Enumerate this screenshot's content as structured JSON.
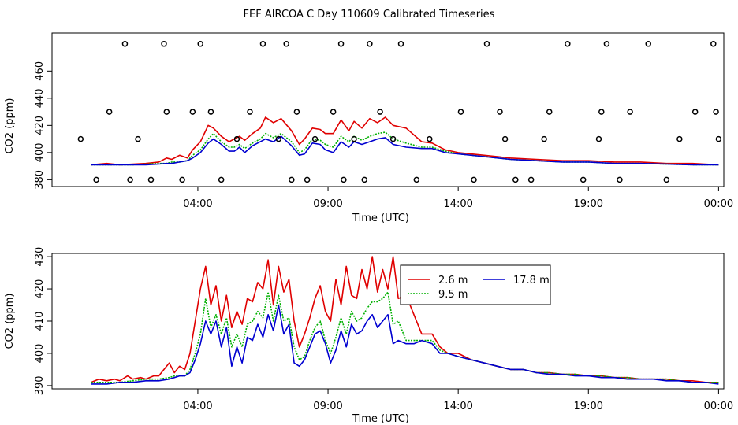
{
  "title": "FEF AIRCOA C  Day 110609  Calibrated Timeseries",
  "chart_data": [
    {
      "type": "scatter+line",
      "xlabel": "Time (UTC)",
      "ylabel": "CO2 (ppm)",
      "x_unit": "hours since 00:00 UTC",
      "xlim": [
        -1.6,
        24.2
      ],
      "ylim": [
        375,
        488
      ],
      "x_ticks": [
        {
          "x": 4,
          "label": "04:00"
        },
        {
          "x": 9,
          "label": "09:00"
        },
        {
          "x": 14,
          "label": "14:00"
        },
        {
          "x": 19,
          "label": "19:00"
        },
        {
          "x": 24,
          "label": "00:00"
        }
      ],
      "y_ticks": [
        380,
        400,
        420,
        440,
        460
      ],
      "grid": false,
      "legend": null,
      "series": [
        {
          "key": "s26",
          "color": "#e00000",
          "style": "solid",
          "x": [
            -0.1,
            0.5,
            1,
            1.5,
            2,
            2.5,
            2.8,
            3,
            3.3,
            3.6,
            3.8,
            4.1,
            4.4,
            4.6,
            4.9,
            5.2,
            5.4,
            5.6,
            5.8,
            6.1,
            6.4,
            6.6,
            6.9,
            7.2,
            7.6,
            7.9,
            8.1,
            8.4,
            8.7,
            8.9,
            9.2,
            9.5,
            9.8,
            10,
            10.3,
            10.6,
            10.9,
            11.2,
            11.5,
            12,
            12.6,
            13,
            13.5,
            14,
            15,
            16,
            17,
            18,
            19,
            20,
            21,
            22,
            23,
            24
          ],
          "y": [
            391,
            392,
            391,
            391.5,
            392,
            393,
            396,
            395,
            398,
            396,
            402,
            408,
            420,
            418,
            412,
            408,
            410,
            412,
            409,
            414,
            418,
            426,
            422,
            425,
            416,
            406,
            410,
            418,
            417,
            414,
            414,
            424,
            416,
            423,
            418,
            425,
            422,
            426,
            420,
            418,
            408,
            407,
            402,
            400,
            398,
            396,
            395,
            394,
            394,
            393,
            393,
            392,
            392,
            391
          ]
        },
        {
          "key": "s95",
          "color": "#00b000",
          "style": "dotted",
          "x": [
            -0.1,
            0.5,
            1,
            1.5,
            2,
            2.5,
            2.8,
            3,
            3.3,
            3.6,
            3.8,
            4.1,
            4.4,
            4.6,
            4.9,
            5.2,
            5.4,
            5.6,
            5.8,
            6.1,
            6.4,
            6.6,
            6.9,
            7.2,
            7.6,
            7.9,
            8.1,
            8.4,
            8.7,
            8.9,
            9.2,
            9.5,
            9.8,
            10,
            10.3,
            10.6,
            10.9,
            11.2,
            11.5,
            12,
            12.6,
            13,
            13.5,
            14,
            15,
            16,
            17,
            18,
            19,
            20,
            21,
            22,
            23,
            24
          ],
          "y": [
            391,
            391,
            391,
            391,
            391.5,
            392,
            392,
            393,
            393,
            394,
            398,
            402,
            410,
            414,
            408,
            404,
            404,
            406,
            403,
            407,
            410,
            414,
            411,
            414,
            408,
            400,
            402,
            410,
            409,
            406,
            404,
            412,
            408,
            412,
            409,
            412,
            414,
            415,
            410,
            407,
            404,
            404,
            401,
            399,
            397,
            395,
            394,
            393,
            393,
            392,
            392,
            391.5,
            391,
            391
          ]
        },
        {
          "key": "s178",
          "color": "#0000d0",
          "style": "solid",
          "x": [
            -0.1,
            0.5,
            1,
            1.5,
            2,
            2.5,
            2.8,
            3,
            3.3,
            3.6,
            3.8,
            4.1,
            4.4,
            4.6,
            4.9,
            5.2,
            5.4,
            5.6,
            5.8,
            6.1,
            6.4,
            6.6,
            6.9,
            7.2,
            7.6,
            7.9,
            8.1,
            8.4,
            8.7,
            8.9,
            9.2,
            9.5,
            9.8,
            10,
            10.3,
            10.6,
            10.9,
            11.2,
            11.5,
            12,
            12.6,
            13,
            13.5,
            14,
            15,
            16,
            17,
            18,
            19,
            20,
            21,
            22,
            23,
            24
          ],
          "y": [
            391,
            391,
            391,
            391,
            391,
            391.5,
            392,
            392,
            393,
            394,
            396,
            400,
            407,
            410,
            406,
            401,
            401,
            404,
            400,
            405,
            408,
            410,
            408,
            412,
            405,
            398,
            399,
            407,
            406,
            402,
            400,
            408,
            404,
            408,
            406,
            408,
            410,
            411,
            406,
            404,
            403,
            403,
            400,
            399,
            397,
            395,
            394,
            393,
            393,
            392,
            392,
            391.5,
            391,
            391
          ]
        },
        {
          "key": "points",
          "kind": "scatter",
          "marker": "open-circle",
          "color": "#000000",
          "x": [
            -0.5,
            0.1,
            0.6,
            1.2,
            1.4,
            1.7,
            2.2,
            2.7,
            2.8,
            3.4,
            3.8,
            4.1,
            4.5,
            4.9,
            5.5,
            6.0,
            6.5,
            7.1,
            7.4,
            7.6,
            7.8,
            8.2,
            8.5,
            9.2,
            9.5,
            9.6,
            10.0,
            10.4,
            10.6,
            11.0,
            11.5,
            11.8,
            12.4,
            12.9,
            14.1,
            14.6,
            15.1,
            15.6,
            15.8,
            16.2,
            16.8,
            17.3,
            17.5,
            18.2,
            18.8,
            19.4,
            19.5,
            19.7,
            20.2,
            20.6,
            21.3,
            22.0,
            22.5,
            23.1,
            23.8,
            23.9,
            24.0
          ],
          "y": [
            410,
            380,
            430,
            480,
            380,
            410,
            380,
            480,
            430,
            380,
            430,
            480,
            430,
            380,
            410,
            430,
            480,
            410,
            480,
            380,
            430,
            380,
            410,
            430,
            480,
            380,
            410,
            380,
            480,
            430,
            410,
            480,
            380,
            410,
            430,
            380,
            480,
            430,
            410,
            380,
            380,
            410,
            430,
            480,
            380,
            410,
            430,
            480,
            380,
            430,
            480,
            380,
            410,
            430,
            480,
            430,
            410
          ]
        }
      ]
    },
    {
      "type": "line",
      "xlabel": "Time (UTC)",
      "ylabel": "CO2 (ppm)",
      "x_unit": "hours since 00:00 UTC",
      "xlim": [
        -1.6,
        24.2
      ],
      "ylim": [
        389,
        431
      ],
      "x_ticks": [
        {
          "x": 4,
          "label": "04:00"
        },
        {
          "x": 9,
          "label": "09:00"
        },
        {
          "x": 14,
          "label": "14:00"
        },
        {
          "x": 19,
          "label": "19:00"
        },
        {
          "x": 24,
          "label": "00:00"
        }
      ],
      "y_ticks": [
        390,
        400,
        410,
        420,
        430
      ],
      "grid": false,
      "legend": "top-center",
      "series": [
        {
          "key": "s26",
          "name": "2.6 m",
          "color": "#e00000",
          "style": "solid",
          "x": [
            -0.1,
            0.2,
            0.5,
            0.8,
            1,
            1.3,
            1.5,
            1.8,
            2,
            2.3,
            2.5,
            2.7,
            2.9,
            3.1,
            3.3,
            3.5,
            3.7,
            3.9,
            4.1,
            4.3,
            4.5,
            4.7,
            4.9,
            5.1,
            5.3,
            5.5,
            5.7,
            5.9,
            6.1,
            6.3,
            6.5,
            6.7,
            6.9,
            7.1,
            7.3,
            7.5,
            7.7,
            7.9,
            8.1,
            8.3,
            8.5,
            8.7,
            8.9,
            9.1,
            9.3,
            9.5,
            9.7,
            9.9,
            10.1,
            10.3,
            10.5,
            10.7,
            10.9,
            11.1,
            11.3,
            11.5,
            11.7,
            12,
            12.3,
            12.6,
            13,
            13.3,
            13.6,
            14,
            14.5,
            15,
            15.5,
            16,
            16.5,
            17,
            17.5,
            18,
            18.5,
            19,
            19.5,
            20,
            20.5,
            21,
            21.5,
            22,
            22.5,
            23,
            23.5,
            24
          ],
          "y": [
            391,
            392,
            391.5,
            392,
            391.5,
            393,
            392,
            392.5,
            392,
            393,
            393,
            395,
            397,
            394,
            396,
            395,
            400,
            410,
            420,
            427,
            415,
            421,
            410,
            418,
            408,
            413,
            409,
            417,
            416,
            422,
            420,
            429,
            415,
            427,
            419,
            423,
            410,
            402,
            406,
            411,
            417,
            421,
            413,
            410,
            423,
            415,
            427,
            418,
            417,
            426,
            420,
            430,
            419,
            426,
            420,
            430,
            417,
            418,
            412,
            406,
            406,
            402,
            400,
            400,
            398,
            397,
            396,
            395,
            395,
            394,
            394,
            393.5,
            393.5,
            393,
            393,
            392.5,
            392.5,
            392,
            392,
            392,
            391.5,
            391.5,
            391,
            391
          ]
        },
        {
          "key": "s95",
          "name": "9.5 m",
          "color": "#00b000",
          "style": "dotted",
          "x": [
            -0.1,
            0.5,
            1,
            1.5,
            2,
            2.5,
            2.9,
            3.1,
            3.3,
            3.5,
            3.7,
            3.9,
            4.1,
            4.3,
            4.5,
            4.7,
            4.9,
            5.1,
            5.3,
            5.5,
            5.7,
            5.9,
            6.1,
            6.3,
            6.5,
            6.7,
            6.9,
            7.1,
            7.3,
            7.5,
            7.7,
            7.9,
            8.1,
            8.3,
            8.5,
            8.7,
            8.9,
            9.1,
            9.3,
            9.5,
            9.7,
            9.9,
            10.1,
            10.3,
            10.5,
            10.7,
            10.9,
            11.1,
            11.3,
            11.5,
            11.7,
            12,
            12.3,
            12.6,
            13,
            13.3,
            13.6,
            14,
            14.5,
            15,
            15.5,
            16,
            16.5,
            17,
            17.5,
            18,
            18.5,
            19,
            19.5,
            20,
            20.5,
            21,
            21.5,
            22,
            22.5,
            23,
            23.5,
            24
          ],
          "y": [
            391,
            391,
            391,
            391.5,
            392,
            392,
            392.5,
            393,
            393,
            393,
            395,
            400,
            406,
            417,
            408,
            412,
            406,
            411,
            402,
            406,
            402,
            409,
            410,
            413,
            411,
            419,
            410,
            418,
            410,
            411,
            402,
            398,
            399,
            404,
            408,
            410,
            404,
            400,
            405,
            411,
            406,
            413,
            410,
            411,
            414,
            416,
            416,
            417,
            419,
            409,
            410,
            404,
            404,
            404,
            404,
            401,
            400,
            399,
            398,
            397,
            396,
            395,
            395,
            394,
            394,
            393.5,
            393.5,
            393,
            393,
            392.5,
            392.5,
            392,
            392,
            392,
            391.5,
            391,
            391,
            391
          ]
        },
        {
          "key": "s178",
          "name": "17.8 m",
          "color": "#0000d0",
          "style": "solid",
          "x": [
            -0.1,
            0.5,
            1,
            1.5,
            2,
            2.5,
            2.9,
            3.1,
            3.3,
            3.5,
            3.7,
            3.9,
            4.1,
            4.3,
            4.5,
            4.7,
            4.9,
            5.1,
            5.3,
            5.5,
            5.7,
            5.9,
            6.1,
            6.3,
            6.5,
            6.7,
            6.9,
            7.1,
            7.3,
            7.5,
            7.7,
            7.9,
            8.1,
            8.3,
            8.5,
            8.7,
            8.9,
            9.1,
            9.3,
            9.5,
            9.7,
            9.9,
            10.1,
            10.3,
            10.5,
            10.7,
            10.9,
            11.1,
            11.3,
            11.5,
            11.7,
            12,
            12.3,
            12.6,
            13,
            13.3,
            13.6,
            14,
            14.5,
            15,
            15.5,
            16,
            16.5,
            17,
            17.5,
            18,
            18.5,
            19,
            19.5,
            20,
            20.5,
            21,
            21.5,
            22,
            22.5,
            23,
            23.5,
            24
          ],
          "y": [
            390.5,
            390.5,
            391,
            391,
            391.5,
            391.5,
            392,
            392.5,
            393,
            393,
            394,
            398,
            403,
            410,
            406,
            410,
            402,
            408,
            396,
            402,
            397,
            405,
            404,
            409,
            405,
            412,
            407,
            415,
            406,
            409,
            397,
            396,
            398,
            402,
            406,
            407,
            403,
            397,
            401,
            407,
            402,
            409,
            406,
            407,
            410,
            412,
            408,
            410,
            412,
            403,
            404,
            403,
            403,
            404,
            403,
            400,
            400,
            399,
            398,
            397,
            396,
            395,
            395,
            394,
            393.5,
            393.5,
            393,
            393,
            392.5,
            392.5,
            392,
            392,
            392,
            391.5,
            391.5,
            391,
            391,
            390.5
          ]
        }
      ]
    }
  ]
}
